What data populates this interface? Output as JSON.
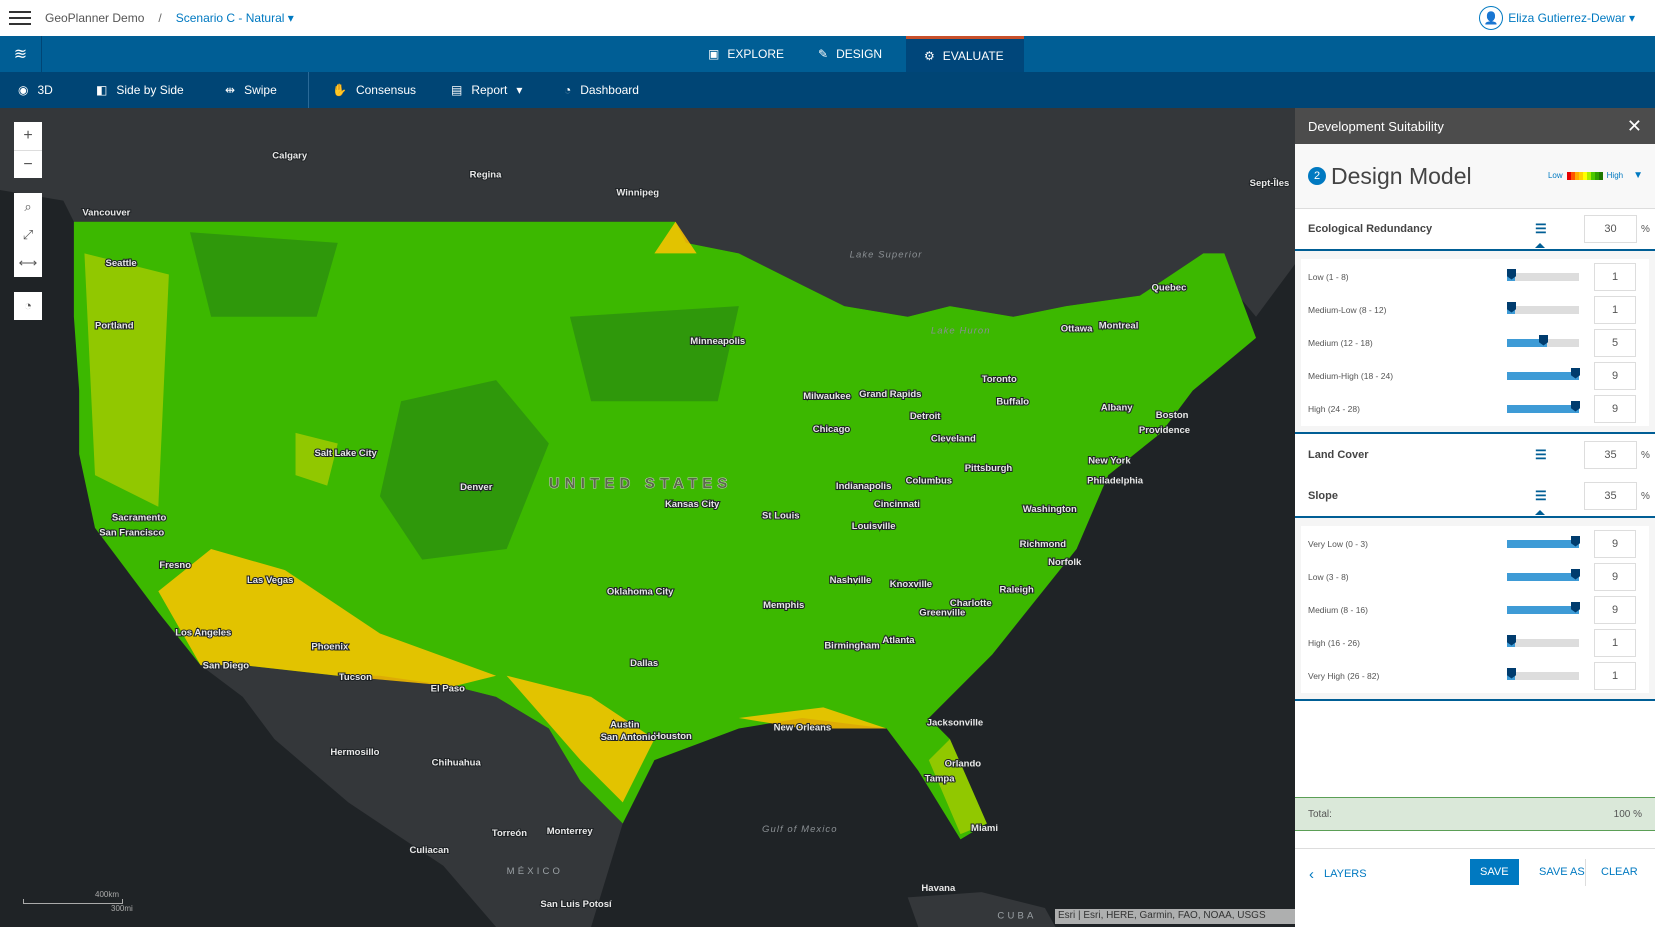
{
  "header": {
    "app": "GeoPlanner Demo",
    "separator": "/",
    "scenario": "Scenario C - Natural",
    "user": "Eliza Gutierrez-Dewar"
  },
  "nav": {
    "tabs": [
      {
        "label": "EXPLORE",
        "icon": "explore-icon"
      },
      {
        "label": "DESIGN",
        "icon": "pencil-icon"
      },
      {
        "label": "EVALUATE",
        "icon": "evaluate-icon",
        "active": true
      }
    ],
    "accent": "#c8502b"
  },
  "toolbar": {
    "items": [
      "3D",
      "Side by Side",
      "Swipe",
      "Consensus",
      "Report",
      "Dashboard"
    ]
  },
  "map": {
    "labels": [
      "Calgary",
      "Regina",
      "Winnipeg",
      "Vancouver",
      "Sept-Îles",
      "Seattle",
      "Portland",
      "Quebec",
      "Minneapolis",
      "Ottawa",
      "Montreal",
      "Toronto",
      "Buffalo",
      "Albany",
      "Boston",
      "Providence",
      "Milwaukee",
      "Grand Rapids",
      "Detroit",
      "Chicago",
      "Cleveland",
      "Salt Lake City",
      "Denver",
      "Pittsburgh",
      "New York",
      "Philadelphia",
      "Indianapolis",
      "Columbus",
      "Kansas City",
      "Cincinnati",
      "St Louis",
      "Louisville",
      "Washington",
      "Sacramento",
      "San Francisco",
      "Richmond",
      "Norfolk",
      "Fresno",
      "Las Vegas",
      "Nashville",
      "Knoxville",
      "Raleigh",
      "Oklahoma City",
      "Memphis",
      "Charlotte",
      "Greenville",
      "Los Angeles",
      "Phoenix",
      "Birmingham",
      "Atlanta",
      "San Diego",
      "Dallas",
      "Tucson",
      "El Paso",
      "Austin",
      "Houston",
      "San Antonio",
      "New Orleans",
      "Jacksonville",
      "Hermosillo",
      "Chihuahua",
      "Orlando",
      "Tampa",
      "Monterrey",
      "Torreón",
      "Miami",
      "Culiacan",
      "Havana",
      "San Luis Potosí"
    ],
    "water": [
      "Lake Superior",
      "Lake Huron",
      "Gulf of Mexico"
    ],
    "countries": [
      "UNITED STATES",
      "MÉXICO",
      "CUBA"
    ],
    "scale": {
      "km": "400km",
      "mi": "300mi"
    },
    "attribution": "Esri | Esri, HERE, Garmin, FAO, NOAA, USGS"
  },
  "panel": {
    "title": "Development Suitability",
    "step": "2",
    "model": "Design Model",
    "legend": {
      "low": "Low",
      "high": "High",
      "colors": [
        "#e60000",
        "#ff5500",
        "#ffaa00",
        "#ffd000",
        "#ffff00",
        "#aaee00",
        "#4cc800",
        "#2ea000",
        "#1e7800"
      ]
    },
    "criteria": [
      {
        "name": "Ecological Redundancy",
        "weight": "30",
        "open": true,
        "classes": [
          {
            "label": "Low (1 - 8)",
            "value": 1
          },
          {
            "label": "Medium-Low (8 - 12)",
            "value": 1
          },
          {
            "label": "Medium (12 - 18)",
            "value": 5
          },
          {
            "label": "Medium-High (18 - 24)",
            "value": 9
          },
          {
            "label": "High (24 - 28)",
            "value": 9
          }
        ]
      },
      {
        "name": "Land Cover",
        "weight": "35",
        "open": false
      },
      {
        "name": "Slope",
        "weight": "35",
        "open": true,
        "classes": [
          {
            "label": "Very Low (0 - 3)",
            "value": 9
          },
          {
            "label": "Low (3 - 8)",
            "value": 9
          },
          {
            "label": "Medium (8 - 16)",
            "value": 9
          },
          {
            "label": "High (16 - 26)",
            "value": 1
          },
          {
            "label": "Very High (26 - 82)",
            "value": 1
          }
        ]
      }
    ],
    "pct": "%",
    "slider_max": 9,
    "total_label": "Total:",
    "total_value": "100 %",
    "footer": {
      "layers": "LAYERS",
      "save": "SAVE",
      "save_as": "SAVE AS",
      "clear": "CLEAR"
    }
  }
}
